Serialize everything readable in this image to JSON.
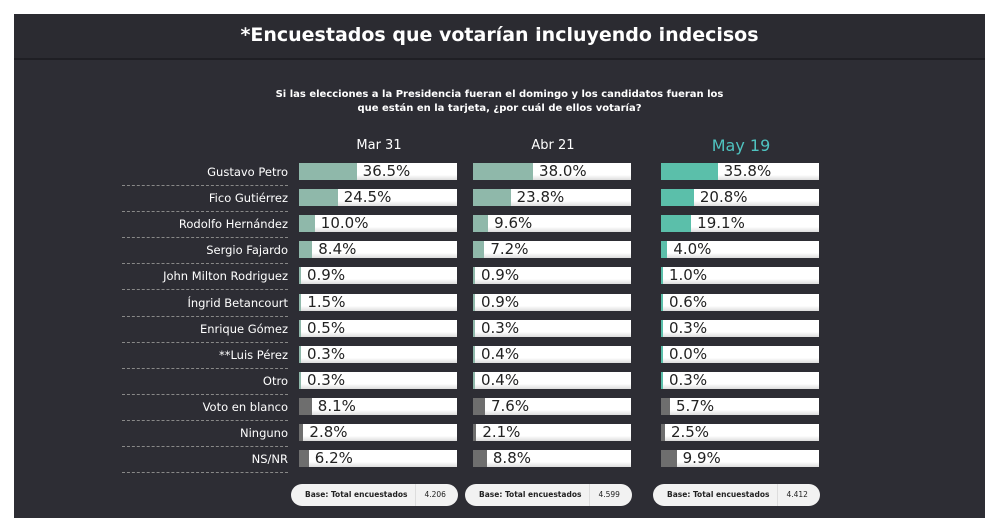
{
  "title": "*Encuestados que votarían incluyendo indecisos",
  "question_line1": "Si las elecciones a la Presidencia fueran el domingo y los candidatos  fueran los",
  "question_line2": "que están en la tarjeta, ¿por cuál de ellos votaría?",
  "colors": {
    "fill_past": "#8fb8aa",
    "fill_latest": "#5bbfaa",
    "fill_other": "#6e6e6e",
    "highlight": "#4fc3c0"
  },
  "chart_data": {
    "type": "bar",
    "orientation": "horizontal",
    "xlim": [
      0,
      100
    ],
    "categories": [
      "Gustavo Petro",
      "Fico Gutiérrez",
      "Rodolfo Hernández",
      "Sergio Fajardo",
      "John Milton Rodriguez",
      "Íngrid Betancourt",
      "Enrique Gómez",
      "**Luis Pérez",
      "Otro",
      "Voto en blanco",
      "Ninguno",
      "NS/NR"
    ],
    "series": [
      {
        "name": "Mar 31",
        "values": [
          36.5,
          24.5,
          10.0,
          8.4,
          0.9,
          1.5,
          0.5,
          0.3,
          0.3,
          8.1,
          2.8,
          6.2
        ],
        "labels": [
          "36.5%",
          "24.5%",
          "10.0%",
          "8.4%",
          "0.9%",
          "1.5%",
          "0.5%",
          "0.3%",
          "0.3%",
          "8.1%",
          "2.8%",
          "6.2%"
        ],
        "base_label": "Base: Total encuestados",
        "base": "4.206"
      },
      {
        "name": "Abr 21",
        "values": [
          38.0,
          23.8,
          9.6,
          7.2,
          0.9,
          0.9,
          0.3,
          0.4,
          0.4,
          7.6,
          2.1,
          8.8
        ],
        "labels": [
          "38.0%",
          "23.8%",
          "9.6%",
          "7.2%",
          "0.9%",
          "0.9%",
          "0.3%",
          "0.4%",
          "0.4%",
          "7.6%",
          "2.1%",
          "8.8%"
        ],
        "base_label": "Base: Total encuestados",
        "base": "4.599"
      },
      {
        "name": "May 19",
        "values": [
          35.8,
          20.8,
          19.1,
          4.0,
          1.0,
          0.6,
          0.3,
          0.0,
          0.3,
          5.7,
          2.5,
          9.9
        ],
        "labels": [
          "35.8%",
          "20.8%",
          "19.1%",
          "4.0%",
          "1.0%",
          "0.6%",
          "0.3%",
          "0.0%",
          "0.3%",
          "5.7%",
          "2.5%",
          "9.9%"
        ],
        "base_label": "Base: Total encuestados",
        "base": "4.412"
      }
    ]
  }
}
